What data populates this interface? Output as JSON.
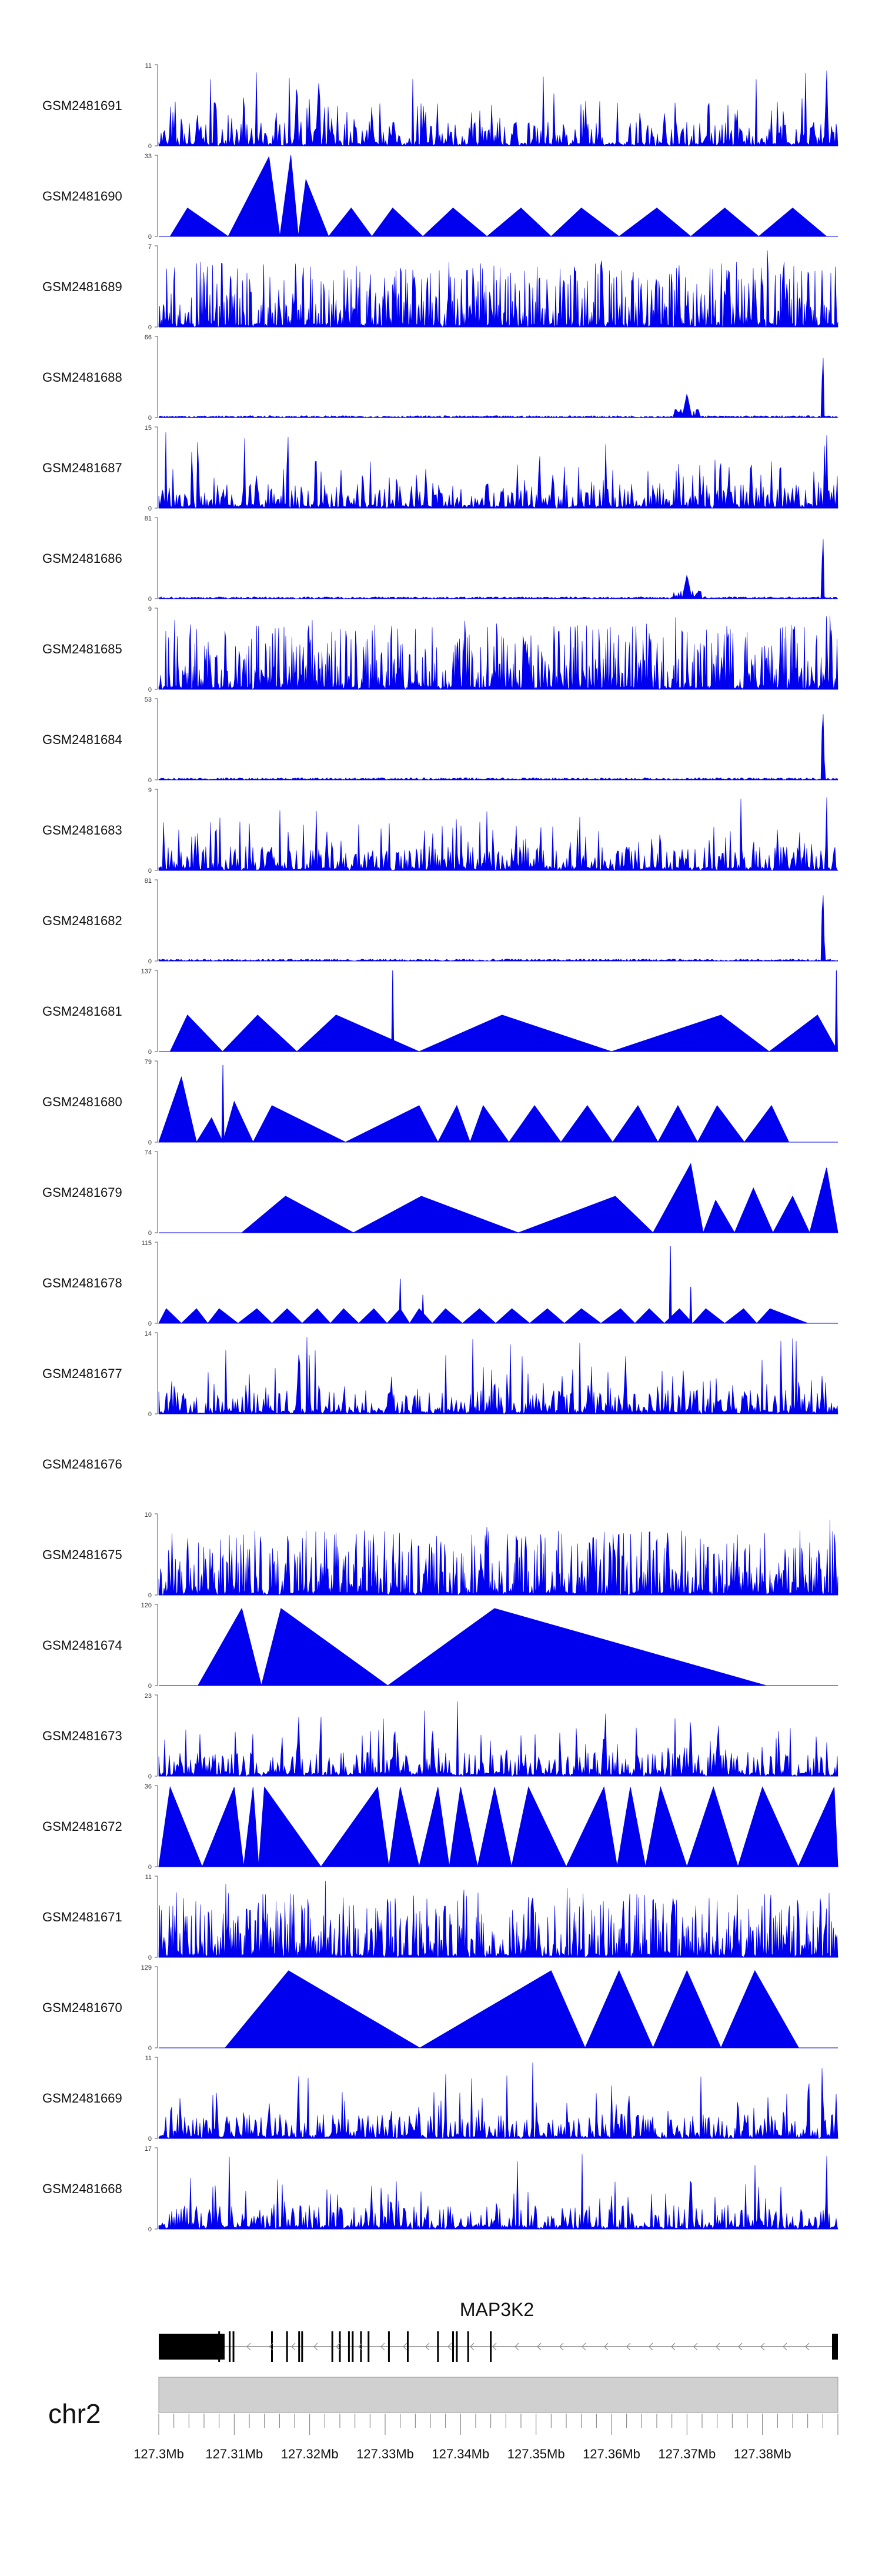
{
  "chart_data": {
    "type": "area",
    "title": "",
    "xlabel": "",
    "ylabel": "",
    "fill_color": "#0000ee",
    "genomic_range_mb": [
      127.3,
      127.39
    ],
    "tracks": [
      {
        "name": "GSM2481691",
        "ymax": 11,
        "style": "noise",
        "peaks": [
          [
            127.3183,
            0.92,
            3
          ],
          [
            127.3885,
            1.0,
            3
          ]
        ]
      },
      {
        "name": "GSM2481690",
        "ymax": 33,
        "style": "tri",
        "apexes": [
          [
            127.3038,
            0.35
          ],
          [
            127.3146,
            0.98
          ],
          [
            127.3175,
            1.0
          ],
          [
            127.3195,
            0.7
          ],
          [
            127.3255,
            0.35
          ],
          [
            127.331,
            0.35
          ],
          [
            127.339,
            0.35
          ],
          [
            127.348,
            0.35
          ],
          [
            127.356,
            0.35
          ],
          [
            127.366,
            0.35
          ],
          [
            127.375,
            0.35
          ],
          [
            127.384,
            0.35
          ]
        ],
        "start": 127.3015,
        "end": 127.3885,
        "fine": true
      },
      {
        "name": "GSM2481689",
        "ymax": 7,
        "style": "noise",
        "dense": true,
        "peaks": []
      },
      {
        "name": "GSM2481688",
        "ymax": 66,
        "style": "flat",
        "peaks": [
          [
            127.37,
            0.3,
            8
          ],
          [
            127.388,
            1.0,
            2
          ]
        ]
      },
      {
        "name": "GSM2481687",
        "ymax": 15,
        "style": "noise",
        "peaks": [
          [
            127.3885,
            1.0,
            2
          ]
        ]
      },
      {
        "name": "GSM2481686",
        "ymax": 81,
        "style": "flat",
        "peaks": [
          [
            127.37,
            0.3,
            8
          ],
          [
            127.388,
            1.0,
            2
          ]
        ]
      },
      {
        "name": "GSM2481685",
        "ymax": 9,
        "style": "noise",
        "dense": true,
        "peaks": [
          [
            127.3885,
            1.0,
            2
          ]
        ]
      },
      {
        "name": "GSM2481684",
        "ymax": 53,
        "style": "flat",
        "peaks": [
          [
            127.388,
            1.0,
            3
          ]
        ]
      },
      {
        "name": "GSM2481683",
        "ymax": 9,
        "style": "noise",
        "peaks": [
          [
            127.3885,
            1.0,
            2
          ]
        ]
      },
      {
        "name": "GSM2481682",
        "ymax": 81,
        "style": "flat",
        "peaks": [
          [
            127.388,
            1.0,
            3
          ]
        ]
      },
      {
        "name": "GSM2481681",
        "ymax": 137,
        "style": "tri",
        "apexes": [
          [
            127.3038,
            0.45
          ],
          [
            127.3131,
            0.45
          ],
          [
            127.3235,
            0.45
          ],
          [
            127.3455,
            0.45
          ],
          [
            127.3745,
            0.45
          ],
          [
            127.3873,
            0.45
          ]
        ],
        "start": 127.3015,
        "end": 127.39,
        "spikes": [
          [
            127.331,
            1.0
          ],
          [
            127.3898,
            1.0
          ]
        ]
      },
      {
        "name": "GSM2481680",
        "ymax": 79,
        "style": "tri",
        "apexes": [
          [
            127.303,
            0.8
          ],
          [
            127.307,
            0.3
          ],
          [
            127.31,
            0.5
          ],
          [
            127.315,
            0.45
          ],
          [
            127.3345,
            0.45
          ],
          [
            127.3395,
            0.45
          ],
          [
            127.343,
            0.45
          ],
          [
            127.3498,
            0.45
          ],
          [
            127.3568,
            0.45
          ],
          [
            127.3635,
            0.45
          ],
          [
            127.3688,
            0.45
          ],
          [
            127.374,
            0.45
          ],
          [
            127.3812,
            0.45
          ]
        ],
        "start": 127.3,
        "end": 127.3835,
        "spikes": [
          [
            127.3085,
            0.95
          ]
        ]
      },
      {
        "name": "GSM2481679",
        "ymax": 74,
        "style": "tri",
        "apexes": [
          [
            127.3168,
            0.45
          ],
          [
            127.3348,
            0.45
          ],
          [
            127.3605,
            0.45
          ],
          [
            127.3705,
            0.85
          ],
          [
            127.3738,
            0.4
          ],
          [
            127.3788,
            0.55
          ],
          [
            127.384,
            0.45
          ],
          [
            127.3885,
            0.8
          ]
        ],
        "start": 127.311,
        "end": 127.39
      },
      {
        "name": "GSM2481678",
        "ymax": 115,
        "style": "tri",
        "apexes": [
          [
            127.301,
            0.18
          ],
          [
            127.305,
            0.18
          ],
          [
            127.308,
            0.18
          ],
          [
            127.313,
            0.18
          ],
          [
            127.317,
            0.18
          ],
          [
            127.321,
            0.18
          ],
          [
            127.3245,
            0.18
          ],
          [
            127.3285,
            0.18
          ],
          [
            127.332,
            0.18
          ],
          [
            127.3345,
            0.18
          ],
          [
            127.338,
            0.18
          ],
          [
            127.3425,
            0.18
          ],
          [
            127.3468,
            0.18
          ],
          [
            127.3515,
            0.18
          ],
          [
            127.356,
            0.18
          ],
          [
            127.3612,
            0.18
          ],
          [
            127.365,
            0.18
          ],
          [
            127.369,
            0.18
          ],
          [
            127.3725,
            0.18
          ],
          [
            127.3775,
            0.18
          ],
          [
            127.381,
            0.18
          ]
        ],
        "start": 127.3,
        "end": 127.386,
        "spikes": [
          [
            127.332,
            0.55
          ],
          [
            127.335,
            0.35
          ],
          [
            127.3678,
            0.95
          ],
          [
            127.3705,
            0.45
          ]
        ]
      },
      {
        "name": "GSM2481677",
        "ymax": 14,
        "style": "noise",
        "peaks": [
          [
            127.3185,
            0.95,
            2
          ],
          [
            127.3445,
            0.5,
            3
          ],
          [
            127.3618,
            0.55,
            3
          ]
        ]
      },
      {
        "name": "GSM2481676",
        "style": "empty"
      },
      {
        "name": "GSM2481675",
        "ymax": 10,
        "style": "noise",
        "dense": true,
        "peaks": [
          [
            127.3335,
            0.9,
            2
          ],
          [
            127.366,
            0.85,
            2
          ]
        ]
      },
      {
        "name": "GSM2481674",
        "ymax": 120,
        "style": "tri",
        "apexes": [
          [
            127.311,
            0.95
          ],
          [
            127.3162,
            0.95
          ],
          [
            127.3445,
            0.95
          ]
        ],
        "start": 127.3052,
        "end": 127.3805
      },
      {
        "name": "GSM2481673",
        "ymax": 23,
        "style": "noise",
        "peaks": [
          [
            127.3185,
            0.95,
            2
          ],
          [
            127.3705,
            0.95,
            2
          ],
          [
            127.374,
            0.5,
            3
          ]
        ]
      },
      {
        "name": "GSM2481672",
        "ymax": 36,
        "style": "tri",
        "apexes": [
          [
            127.3015,
            0.98
          ],
          [
            127.31,
            0.98
          ],
          [
            127.3125,
            0.98
          ],
          [
            127.314,
            0.98
          ],
          [
            127.329,
            0.98
          ],
          [
            127.332,
            0.98
          ],
          [
            127.337,
            0.98
          ],
          [
            127.34,
            0.98
          ],
          [
            127.3445,
            0.98
          ],
          [
            127.349,
            0.98
          ],
          [
            127.359,
            0.98
          ],
          [
            127.3625,
            0.98
          ],
          [
            127.3665,
            0.98
          ],
          [
            127.3735,
            0.98
          ],
          [
            127.38,
            0.98
          ],
          [
            127.3895,
            0.98
          ]
        ],
        "start": 127.3,
        "end": 127.39,
        "fine": true
      },
      {
        "name": "GSM2481671",
        "ymax": 11,
        "style": "noise",
        "dense": true,
        "peaks": []
      },
      {
        "name": "GSM2481670",
        "ymax": 129,
        "style": "tri",
        "apexes": [
          [
            127.3172,
            0.95
          ],
          [
            127.352,
            0.95
          ],
          [
            127.361,
            0.95
          ],
          [
            127.37,
            0.95
          ],
          [
            127.379,
            0.95
          ]
        ],
        "start": 127.3088,
        "end": 127.3848
      },
      {
        "name": "GSM2481669",
        "ymax": 11,
        "style": "noise",
        "peaks": [
          [
            127.3185,
            1.0,
            2
          ],
          [
            127.388,
            0.55,
            3
          ]
        ]
      },
      {
        "name": "GSM2481668",
        "ymax": 17,
        "style": "noise",
        "peaks": [
          [
            127.3885,
            1.0,
            2
          ]
        ]
      }
    ],
    "gene": {
      "name": "MAP3K2",
      "start_mb": 127.3,
      "end_mb": 127.39,
      "strand": "-",
      "exons_mb": [
        127.308,
        127.3094,
        127.3099,
        127.315,
        127.317,
        127.3186,
        127.319,
        127.323,
        127.324,
        127.3252,
        127.3257,
        127.3268,
        127.3278,
        127.3305,
        127.333,
        127.337,
        127.339,
        127.3395,
        127.341,
        127.344
      ]
    },
    "chromosome": {
      "name": "chr2",
      "tick_labels": [
        "127.3Mb",
        "127.31Mb",
        "127.32Mb",
        "127.33Mb",
        "127.34Mb",
        "127.35Mb",
        "127.36Mb",
        "127.37Mb",
        "127.38Mb"
      ],
      "tick_values": [
        127.3,
        127.31,
        127.32,
        127.33,
        127.34,
        127.35,
        127.36,
        127.37,
        127.38
      ]
    }
  }
}
